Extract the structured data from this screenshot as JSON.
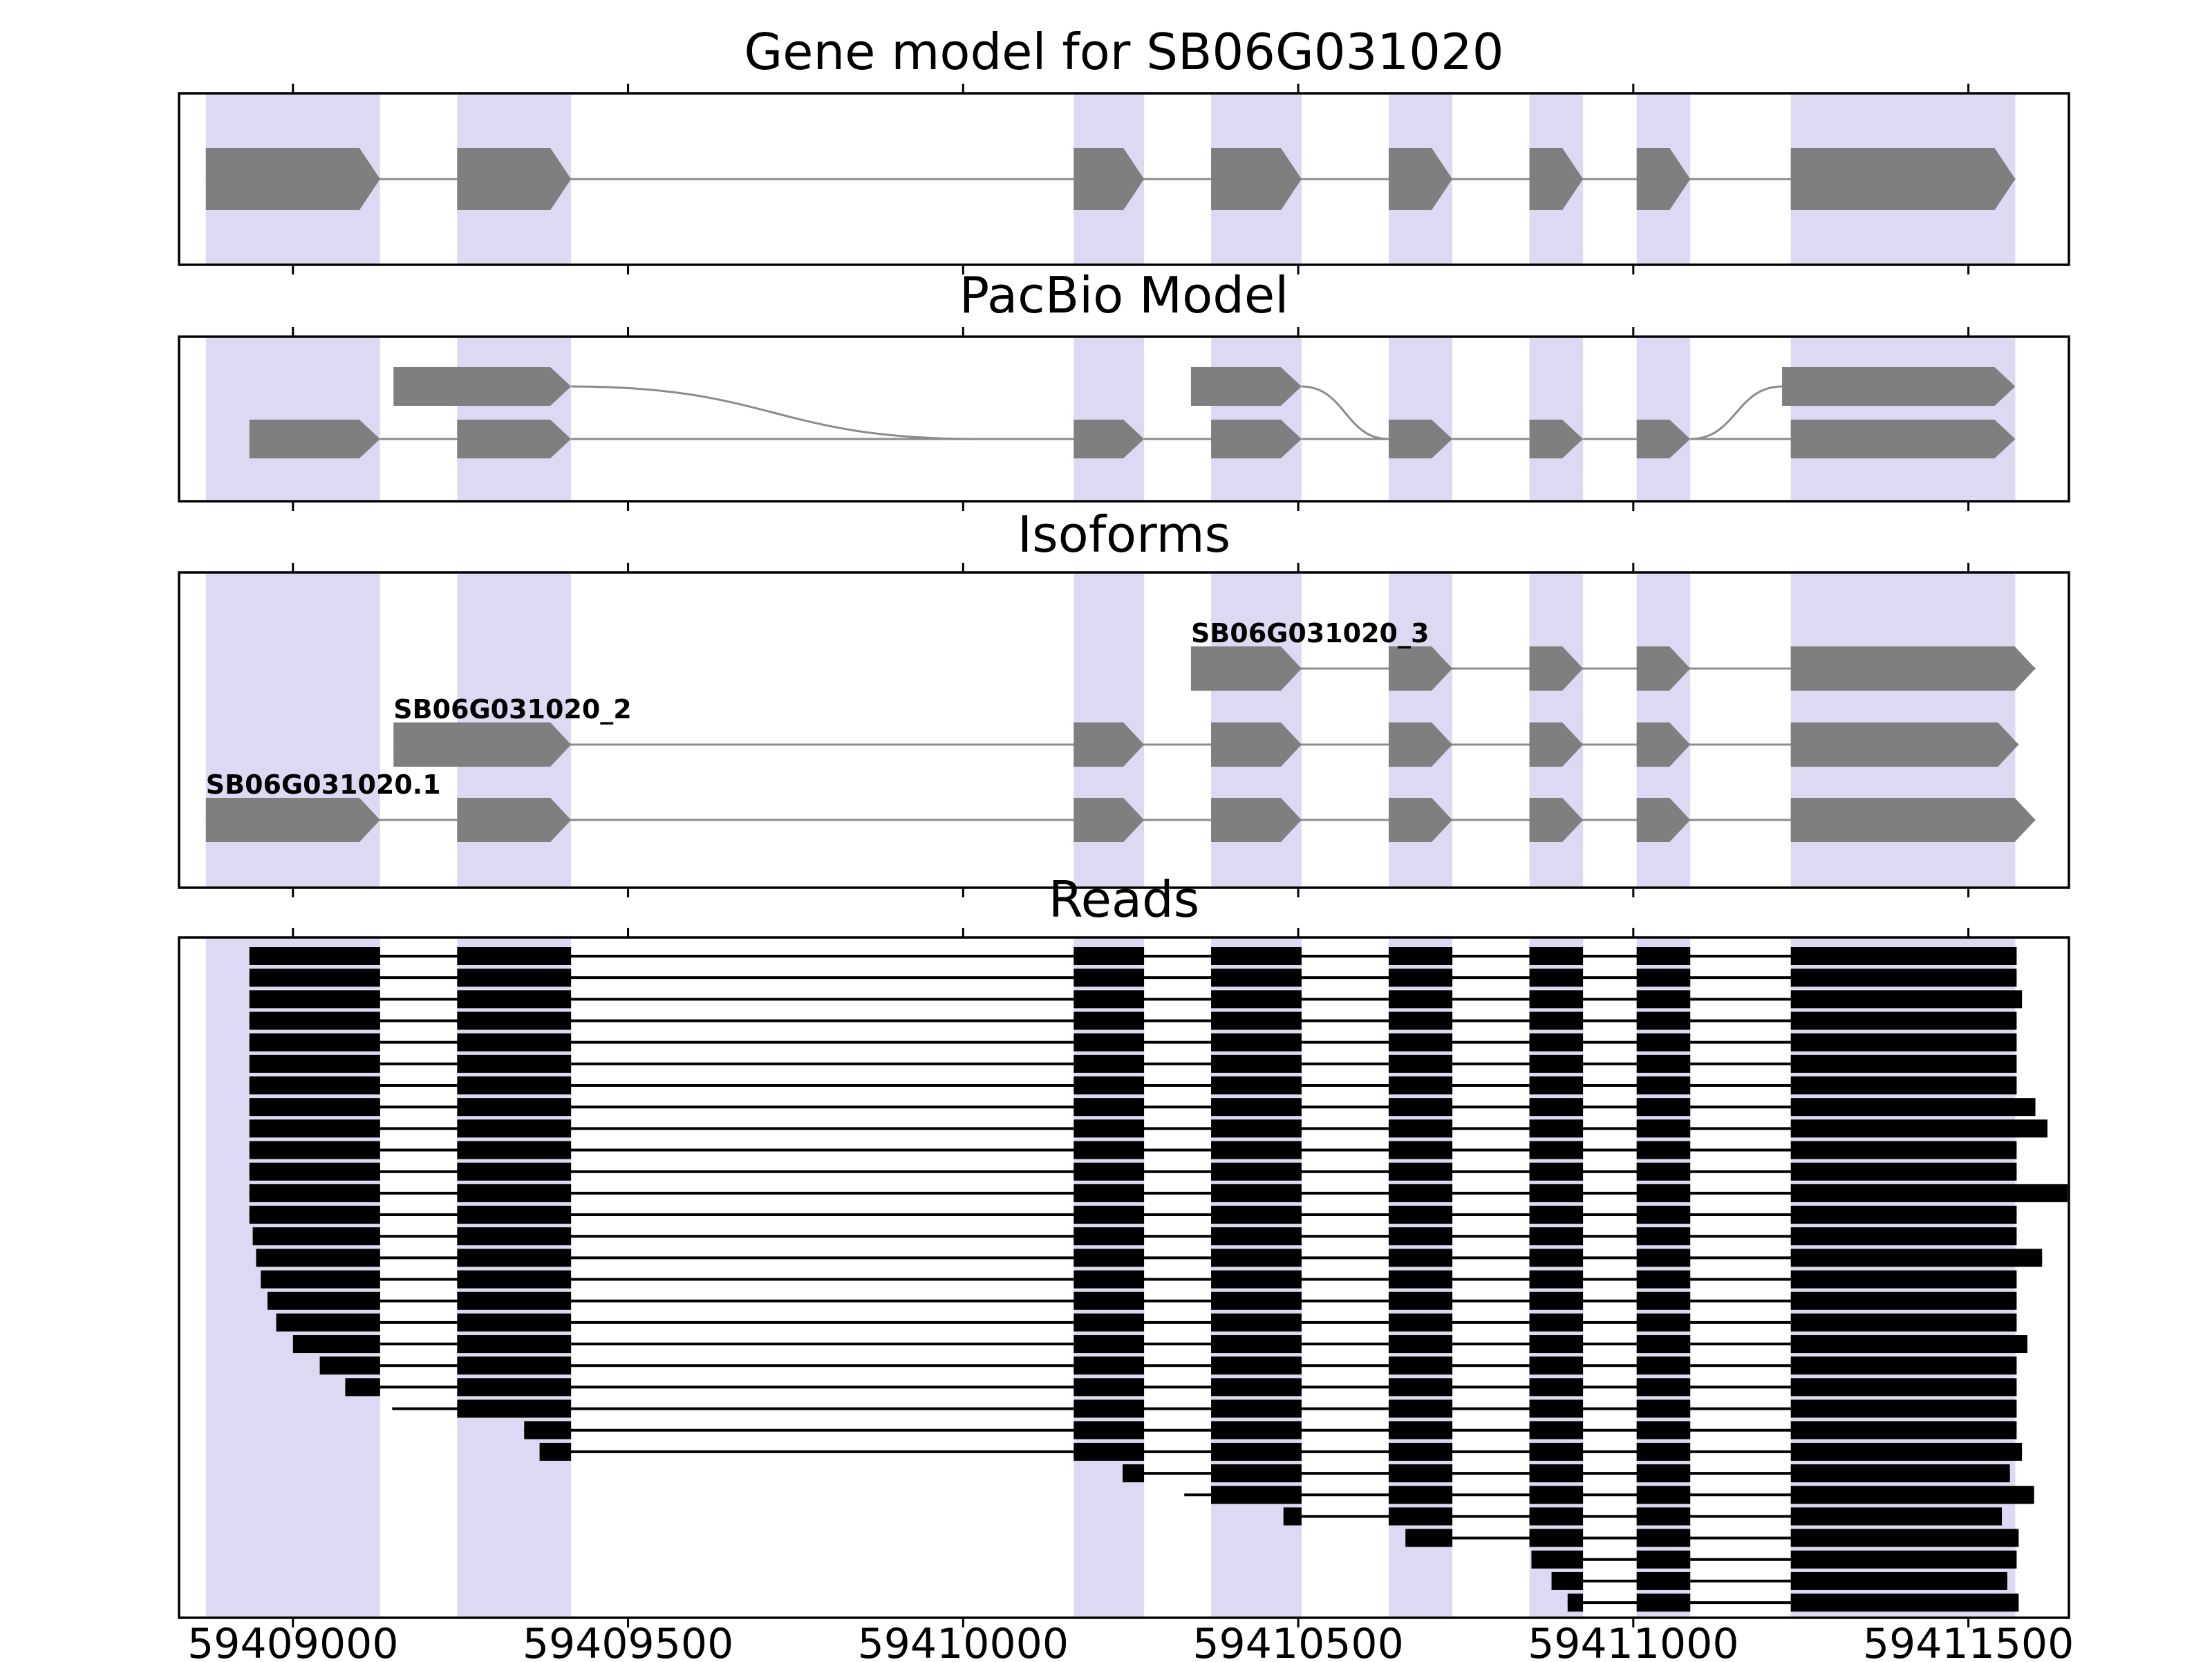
{
  "figure": {
    "panels": {
      "gene": {
        "title": "Gene model for SB06G031020"
      },
      "pacbio": {
        "title": "PacBio Model"
      },
      "isoforms": {
        "title": "Isoforms"
      },
      "reads": {
        "title": "Reads"
      }
    }
  },
  "chart_data": {
    "type": "genome-browser-tracks",
    "title": "Gene model for SB06G031020",
    "xlim": [
      59408830,
      59411650
    ],
    "x_ticks": [
      59409000,
      59409500,
      59410000,
      59410500,
      59411000,
      59411500
    ],
    "grid": false,
    "colors": {
      "exon": "#7f7f7f",
      "intron": "#8c8c8c",
      "highlight": "#dcdaf3",
      "read": "#000000",
      "frame": "#000000",
      "background": "#ffffff"
    },
    "highlight_regions": [
      [
        59408870,
        59409130
      ],
      [
        59409245,
        59409415
      ],
      [
        59410165,
        59410270
      ],
      [
        59410370,
        59410505
      ],
      [
        59410635,
        59410730
      ],
      [
        59410845,
        59410925
      ],
      [
        59411005,
        59411085
      ],
      [
        59411235,
        59411570
      ]
    ],
    "gene_model": {
      "name": "SB06G031020",
      "strand": "+",
      "exons": [
        [
          59408870,
          59409130
        ],
        [
          59409245,
          59409415
        ],
        [
          59410165,
          59410270
        ],
        [
          59410370,
          59410505
        ],
        [
          59410635,
          59410730
        ],
        [
          59410845,
          59410925
        ],
        [
          59411005,
          59411085
        ],
        [
          59411235,
          59411570
        ]
      ]
    },
    "pacbio_model": {
      "rows": [
        {
          "row": 0,
          "blocks": [
            [
              59409150,
              59409415
            ],
            [
              59410340,
              59410505
            ],
            [
              59411222,
              59411570
            ]
          ]
        },
        {
          "row": 1,
          "blocks": [
            [
              59408935,
              59409130
            ],
            [
              59409245,
              59409415
            ],
            [
              59410165,
              59410270
            ],
            [
              59410370,
              59410505
            ],
            [
              59410635,
              59410730
            ],
            [
              59410845,
              59410925
            ],
            [
              59411005,
              59411085
            ],
            [
              59411235,
              59411570
            ]
          ]
        }
      ],
      "connectors": [
        {
          "from_x": 59409415,
          "from_row": 0,
          "to_x": 59410165,
          "to_row": 1,
          "land_x": 59410020
        },
        {
          "from_x": 59410505,
          "from_row": 0,
          "to_x": 59410635,
          "to_row": 1
        },
        {
          "from_x": 59411085,
          "from_row": 1,
          "to_x": 59411222,
          "to_row": 0
        }
      ]
    },
    "isoforms": [
      {
        "name": "SB06G031020_3",
        "exons": [
          [
            59410340,
            59410505
          ],
          [
            59410635,
            59410730
          ],
          [
            59410845,
            59410925
          ],
          [
            59411005,
            59411085
          ],
          [
            59411235,
            59411600
          ]
        ]
      },
      {
        "name": "SB06G031020_2",
        "exons": [
          [
            59409150,
            59409415
          ],
          [
            59410165,
            59410270
          ],
          [
            59410370,
            59410505
          ],
          [
            59410635,
            59410730
          ],
          [
            59410845,
            59410925
          ],
          [
            59411005,
            59411085
          ],
          [
            59411235,
            59411575
          ]
        ]
      },
      {
        "name": "SB06G031020.1",
        "exons": [
          [
            59408870,
            59409130
          ],
          [
            59409245,
            59409415
          ],
          [
            59410165,
            59410270
          ],
          [
            59410370,
            59410505
          ],
          [
            59410635,
            59410730
          ],
          [
            59410845,
            59410925
          ],
          [
            59411005,
            59411085
          ],
          [
            59411235,
            59411600
          ]
        ]
      }
    ],
    "read_exons": [
      [
        59408870,
        59409130
      ],
      [
        59409245,
        59409415
      ],
      [
        59410165,
        59410270
      ],
      [
        59410370,
        59410505
      ],
      [
        59410635,
        59410730
      ],
      [
        59410845,
        59410925
      ],
      [
        59411005,
        59411085
      ],
      [
        59411235,
        59411650
      ]
    ],
    "reads": [
      [
        59408935,
        59411572
      ],
      [
        59408935,
        59411572
      ],
      [
        59408935,
        59411580
      ],
      [
        59408935,
        59411572
      ],
      [
        59408935,
        59411572
      ],
      [
        59408935,
        59411572
      ],
      [
        59408935,
        59411572
      ],
      [
        59408935,
        59411600
      ],
      [
        59408935,
        59411618
      ],
      [
        59408935,
        59411572
      ],
      [
        59408935,
        59411572
      ],
      [
        59408935,
        59411648
      ],
      [
        59408935,
        59411572
      ],
      [
        59408940,
        59411572
      ],
      [
        59408945,
        59411610
      ],
      [
        59408952,
        59411572
      ],
      [
        59408962,
        59411572
      ],
      [
        59408975,
        59411572
      ],
      [
        59409000,
        59411588
      ],
      [
        59409040,
        59411572
      ],
      [
        59409078,
        59411572
      ],
      [
        59409148,
        59411572
      ],
      [
        59409345,
        59411572
      ],
      [
        59409368,
        59411580
      ],
      [
        59410238,
        59411562
      ],
      [
        59410330,
        59411598
      ],
      [
        59410478,
        59411550
      ],
      [
        59410660,
        59411575
      ],
      [
        59410848,
        59411572
      ],
      [
        59410878,
        59411558
      ],
      [
        59410902,
        59411575
      ]
    ]
  }
}
